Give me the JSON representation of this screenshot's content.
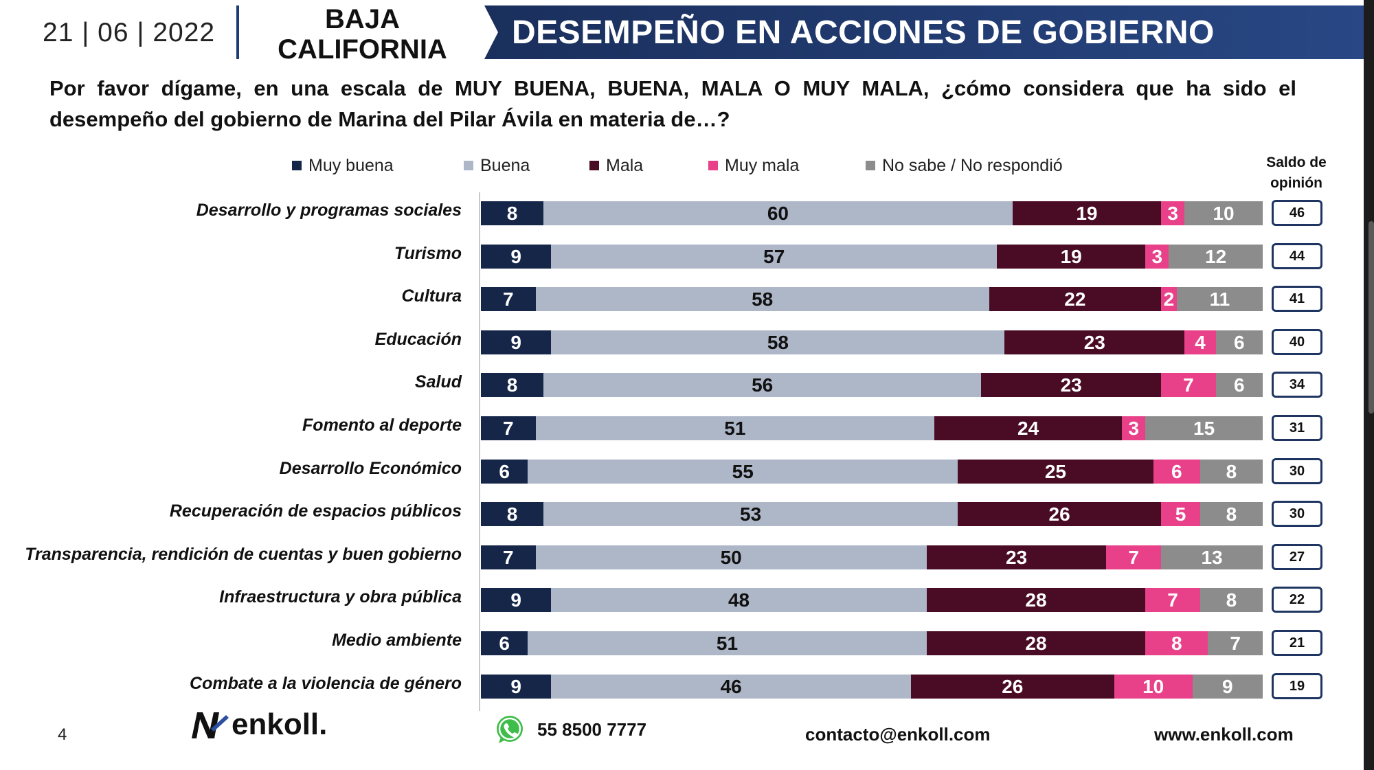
{
  "header": {
    "date": "21 | 06 | 2022",
    "region_line1": "BAJA",
    "region_line2": "CALIFORNIA",
    "title": "DESEMPEÑO EN ACCIONES DE GOBIERNO"
  },
  "question": "Por favor dígame, en una escala de MUY BUENA, BUENA, MALA O MUY MALA, ¿cómo considera que ha sido el desempeño del gobierno de Marina del Pilar Ávila en materia de…?",
  "colors": {
    "muy_buena": "#152649",
    "buena": "#aeb7c8",
    "mala": "#4a0c25",
    "muy_mala": "#e8418a",
    "no_sabe": "#8c8c8c",
    "banner": "#1e3461"
  },
  "chart_data": {
    "type": "bar",
    "orientation": "horizontal",
    "stacked": true,
    "legend": [
      "Muy buena",
      "Buena",
      "Mala",
      "Muy mala",
      "No sabe / No respondió"
    ],
    "saldo_header_line1": "Saldo de",
    "saldo_header_line2": "opinión",
    "categories": [
      "Desarrollo y programas sociales",
      "Turismo",
      "Cultura",
      "Educación",
      "Salud",
      "Fomento al deporte",
      "Desarrollo Económico",
      "Recuperación de espacios públicos",
      "Transparencia, rendición de cuentas y buen gobierno",
      "Infraestructura y obra pública",
      "Medio ambiente",
      "Combate a la violencia de género"
    ],
    "series": [
      {
        "name": "Muy buena",
        "values": [
          8,
          9,
          7,
          9,
          8,
          7,
          6,
          8,
          7,
          9,
          6,
          9
        ]
      },
      {
        "name": "Buena",
        "values": [
          60,
          57,
          58,
          58,
          56,
          51,
          55,
          53,
          50,
          48,
          51,
          46
        ]
      },
      {
        "name": "Mala",
        "values": [
          19,
          19,
          22,
          23,
          23,
          24,
          25,
          26,
          23,
          28,
          28,
          26
        ]
      },
      {
        "name": "Muy mala",
        "values": [
          3,
          3,
          2,
          4,
          7,
          3,
          6,
          5,
          7,
          7,
          8,
          10
        ]
      },
      {
        "name": "No sabe / No respondió",
        "values": [
          10,
          12,
          11,
          6,
          6,
          15,
          8,
          8,
          13,
          8,
          7,
          9
        ]
      }
    ],
    "saldo": [
      46,
      44,
      41,
      40,
      34,
      31,
      30,
      30,
      27,
      22,
      21,
      19
    ],
    "unit": "%",
    "xlim": [
      0,
      100
    ]
  },
  "footer": {
    "page": "4",
    "logo_text": "enkoll.",
    "phone": "55 8500 7777",
    "email": "contacto@enkoll.com",
    "web": "www.enkoll.com"
  }
}
